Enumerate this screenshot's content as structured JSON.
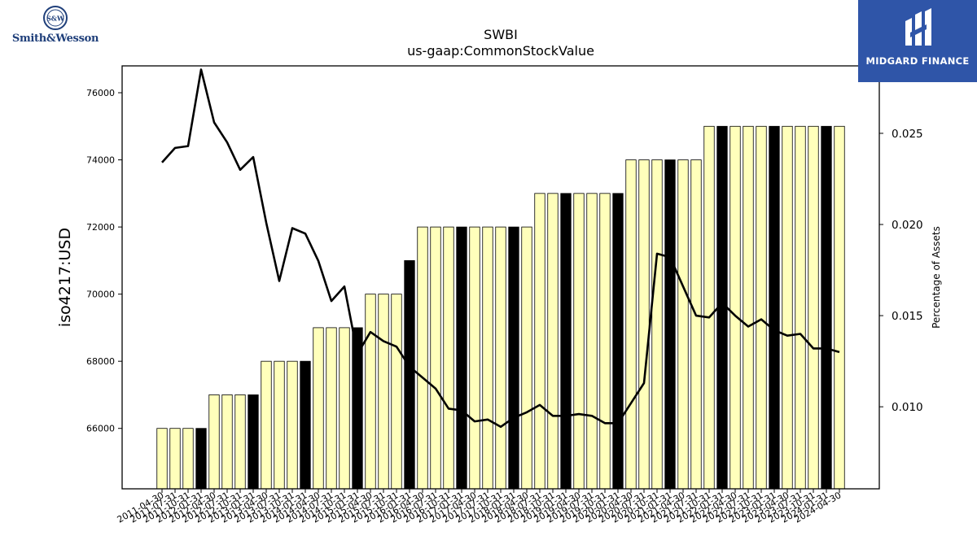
{
  "brand_left": {
    "name": "Smith&Wesson",
    "mark": "S&W"
  },
  "brand_right": {
    "name": "MIDGARD FINANCE"
  },
  "chart_data": {
    "type": "bar",
    "title": "SWBI",
    "subtitle": "us-gaap:CommonStockValue",
    "ylabel": "iso4217:USD",
    "y2label": "Percentage of Assets",
    "ylim": [
      64200,
      76800
    ],
    "y2lim": [
      0.0055,
      0.0287
    ],
    "yticks": [
      66000,
      68000,
      70000,
      72000,
      74000,
      76000
    ],
    "y2ticks": [
      0.01,
      0.015,
      0.02,
      0.025
    ],
    "y2ticklabels": [
      "0.010",
      "0.015",
      "0.020",
      "0.025"
    ],
    "bar_color": "#ffffbb",
    "highlight_color": "#000000",
    "line_color": "#000000",
    "categories": [
      "2011-04-30",
      "2011-07-31",
      "2011-10-31",
      "2012-01-31",
      "2012-04-30",
      "2012-07-31",
      "2012-10-31",
      "2013-01-31",
      "2013-04-30",
      "2013-07-31",
      "2013-10-31",
      "2014-01-31",
      "2014-04-30",
      "2014-07-31",
      "2014-10-31",
      "2015-01-31",
      "2015-04-30",
      "2015-07-31",
      "2015-10-31",
      "2016-01-31",
      "2016-04-30",
      "2016-07-31",
      "2016-10-31",
      "2017-01-31",
      "2017-04-30",
      "2017-07-31",
      "2017-10-31",
      "2018-01-31",
      "2018-04-30",
      "2018-07-31",
      "2018-10-31",
      "2019-01-31",
      "2019-04-30",
      "2019-07-31",
      "2019-10-31",
      "2020-01-31",
      "2020-04-30",
      "2020-07-31",
      "2020-10-31",
      "2021-01-31",
      "2021-04-30",
      "2021-07-31",
      "2021-10-31",
      "2022-01-31",
      "2022-04-30",
      "2022-07-31",
      "2022-10-31",
      "2023-01-31",
      "2023-04-30",
      "2023-07-31",
      "2023-10-31",
      "2024-01-31",
      "2024-04-30"
    ],
    "series": [
      {
        "kind": "bar",
        "values": [
          66000,
          66000,
          66000,
          66000,
          67000,
          67000,
          67000,
          67000,
          68000,
          68000,
          68000,
          68000,
          69000,
          69000,
          69000,
          69000,
          70000,
          70000,
          70000,
          71000,
          72000,
          72000,
          72000,
          72000,
          72000,
          72000,
          72000,
          72000,
          72000,
          73000,
          73000,
          73000,
          73000,
          73000,
          73000,
          73000,
          74000,
          74000,
          74000,
          74000,
          74000,
          74000,
          75000,
          75000,
          75000,
          75000,
          75000,
          75000,
          75000,
          75000,
          75000,
          75000,
          75000
        ],
        "highlighted": [
          false,
          false,
          false,
          true,
          false,
          false,
          false,
          true,
          false,
          false,
          false,
          true,
          false,
          false,
          false,
          true,
          false,
          false,
          false,
          true,
          false,
          false,
          false,
          true,
          false,
          false,
          false,
          true,
          false,
          false,
          false,
          true,
          false,
          false,
          false,
          true,
          false,
          false,
          false,
          true,
          false,
          false,
          false,
          true,
          false,
          false,
          false,
          true,
          false,
          false,
          false,
          true,
          false
        ]
      },
      {
        "kind": "line",
        "axis": "right",
        "values": [
          0.0234,
          0.0242,
          0.0243,
          0.0285,
          0.0256,
          0.0245,
          0.023,
          0.0237,
          0.0201,
          0.0169,
          0.0198,
          0.0195,
          0.018,
          0.0158,
          0.0166,
          0.0129,
          0.0141,
          0.0136,
          0.0133,
          0.0122,
          0.0116,
          0.011,
          0.0099,
          0.0098,
          0.0092,
          0.0093,
          0.0089,
          0.0094,
          0.0097,
          0.0101,
          0.0095,
          0.0095,
          0.0096,
          0.0095,
          0.0091,
          0.0091,
          0.0102,
          0.0113,
          0.0184,
          0.0182,
          0.0166,
          0.015,
          0.0149,
          0.0157,
          0.015,
          0.0144,
          0.0148,
          0.0142,
          0.0139,
          0.014,
          0.0132,
          0.0132,
          0.013
        ]
      }
    ]
  }
}
